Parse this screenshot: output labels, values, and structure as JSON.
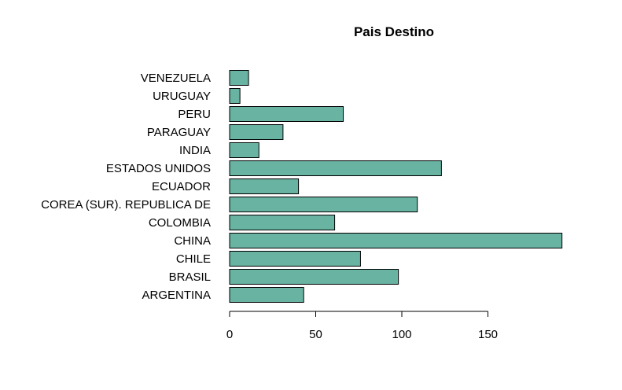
{
  "chart_data": {
    "type": "bar",
    "orientation": "horizontal",
    "title": "Pais Destino",
    "xlabel": "",
    "ylabel": "",
    "categories": [
      "ARGENTINA",
      "BRASIL",
      "CHILE",
      "CHINA",
      "COLOMBIA",
      "COREA (SUR). REPUBLICA DE",
      "ECUADOR",
      "ESTADOS UNIDOS",
      "INDIA",
      "PARAGUAY",
      "PERU",
      "URUGUAY",
      "VENEZUELA"
    ],
    "values": [
      43,
      98,
      76,
      193,
      61,
      109,
      40,
      123,
      17,
      31,
      66,
      6,
      11
    ],
    "xlim": [
      0,
      193
    ],
    "xticks": [
      0,
      50,
      100,
      150
    ],
    "xtick_labels": [
      "0",
      "50",
      "100",
      "150"
    ],
    "grid": false,
    "bar_color": "#69b3a2",
    "bar_edge_color": "#000000"
  }
}
